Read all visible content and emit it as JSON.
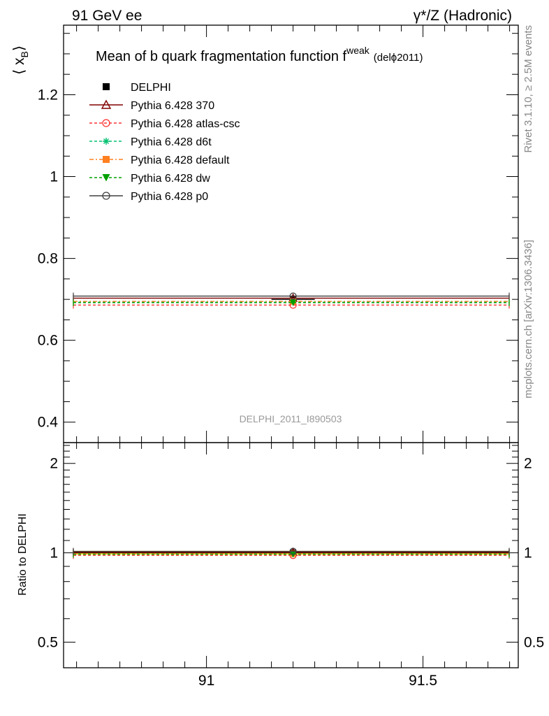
{
  "header": {
    "left": "91 GeV ee",
    "right": "γ*/Z (Hadronic)"
  },
  "side_text": {
    "rivet": "Rivet 3.1.10, ≥ 2.5M events",
    "mcplots": "mcplots.cern.ch [arXiv:1306.3436]"
  },
  "chart_data": [
    {
      "type": "scatter",
      "title": "Mean of b quark fragmentation function f",
      "title_sup": "weak",
      "title_tag": "(delϕ2011)",
      "ylabel": "⟨ x",
      "ylabel_sub": "B",
      "ylabel_close": "⟩",
      "watermark": "DELPHI_2011_I890503",
      "xlim": [
        90.67,
        91.72
      ],
      "ylim": [
        0.35,
        1.37
      ],
      "yticks": [
        0.4,
        0.6,
        0.8,
        1.0,
        1.2
      ],
      "ytick_labels": [
        "0.4",
        "0.6",
        "0.8",
        "1",
        "1.2"
      ],
      "x": 91.2,
      "legend_position": "top-left",
      "series": [
        {
          "name": "DELPHI",
          "kind": "data",
          "color": "#000000",
          "marker": "square-filled",
          "y": 0.7,
          "xerr": [
            91.15,
            91.25
          ]
        },
        {
          "name": "Pythia 6.428 370",
          "kind": "mc",
          "color": "#800000",
          "marker": "triangle-open",
          "dash": "solid",
          "y": 0.703
        },
        {
          "name": "Pythia 6.428 atlas-csc",
          "kind": "mc",
          "color": "#ff3333",
          "marker": "circle-open",
          "dash": "4,3",
          "y": 0.686
        },
        {
          "name": "Pythia 6.428 d6t",
          "kind": "mc",
          "color": "#00c070",
          "marker": "star",
          "dash": "4,3",
          "y": 0.693
        },
        {
          "name": "Pythia 6.428 default",
          "kind": "mc",
          "color": "#ff8020",
          "marker": "square-filled",
          "dash": "6,3,2,3",
          "y": 0.695
        },
        {
          "name": "Pythia 6.428 dw",
          "kind": "mc",
          "color": "#00a000",
          "marker": "triangle-down-filled",
          "dash": "4,3",
          "y": 0.692
        },
        {
          "name": "Pythia 6.428 p0",
          "kind": "mc",
          "color": "#404040",
          "marker": "circle-open",
          "dash": "solid",
          "y": 0.708
        }
      ]
    },
    {
      "type": "scatter",
      "ylabel": "Ratio to DELPHI",
      "xlim": [
        90.67,
        91.72
      ],
      "ylim": [
        0.41,
        2.35
      ],
      "y_scale": "log",
      "yticks": [
        0.5,
        1,
        2
      ],
      "ytick_labels": [
        "0.5",
        "1",
        "2"
      ],
      "xticks": [
        91,
        91.5
      ],
      "xtick_labels": [
        "91",
        "91.5"
      ],
      "x": 91.2,
      "band": {
        "color": "#ffee44",
        "low": 0.985,
        "high": 1.015
      },
      "series": [
        {
          "name": "DELPHI",
          "color": "#000000",
          "y": 1.0
        },
        {
          "name": "Pythia 6.428 370",
          "color": "#800000",
          "y": 1.004
        },
        {
          "name": "Pythia 6.428 atlas-csc",
          "color": "#ff3333",
          "y": 0.98
        },
        {
          "name": "Pythia 6.428 d6t",
          "color": "#00c070",
          "y": 0.99
        },
        {
          "name": "Pythia 6.428 default",
          "color": "#ff8020",
          "y": 0.993
        },
        {
          "name": "Pythia 6.428 dw",
          "color": "#00a000",
          "y": 0.989
        },
        {
          "name": "Pythia 6.428 p0",
          "color": "#404040",
          "y": 1.011
        }
      ]
    }
  ]
}
